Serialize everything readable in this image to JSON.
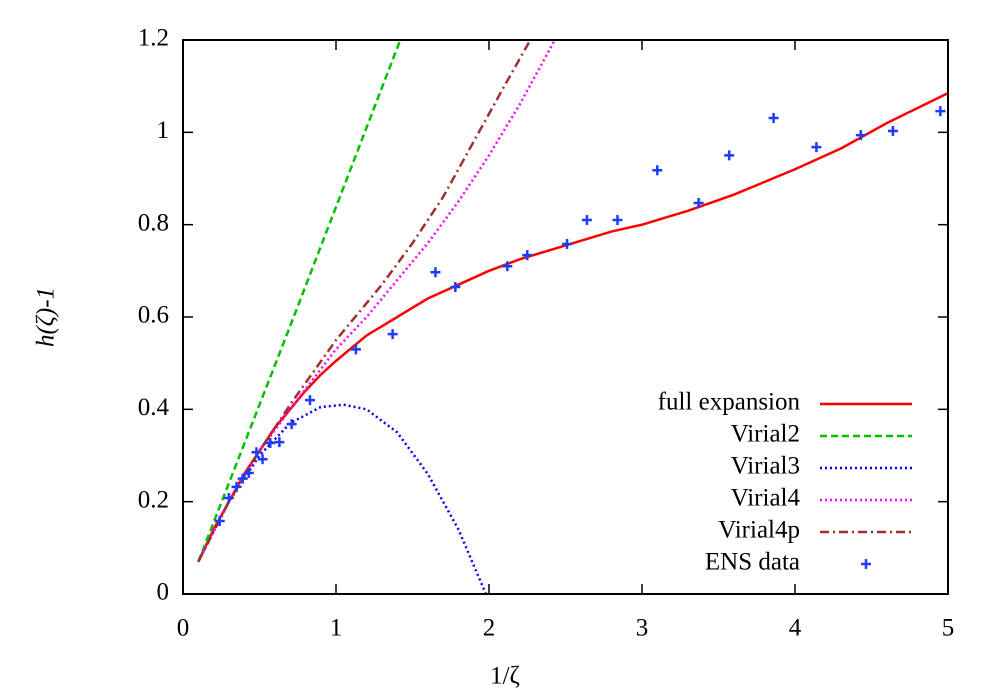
{
  "chart_data": {
    "type": "line",
    "xlabel": "1/ζ",
    "ylabel": "h(ζ)-1",
    "xlim": [
      0,
      5
    ],
    "ylim": [
      0,
      1.2
    ],
    "xticks": [
      0,
      1,
      2,
      3,
      4,
      5
    ],
    "yticks": [
      0,
      0.2,
      0.4,
      0.6,
      0.8,
      1,
      1.2
    ],
    "legend": "bottom-right",
    "series": [
      {
        "name": "full expansion",
        "color": "#ff0000",
        "line_style": "solid",
        "x": [
          0.1,
          0.2,
          0.3,
          0.4,
          0.5,
          0.6,
          0.7,
          0.8,
          0.9,
          1.0,
          1.2,
          1.4,
          1.6,
          1.8,
          2.0,
          2.2,
          2.5,
          2.8,
          3.0,
          3.3,
          3.6,
          4.0,
          4.3,
          4.6,
          5.0
        ],
        "values": [
          0.07,
          0.14,
          0.2,
          0.26,
          0.31,
          0.36,
          0.4,
          0.44,
          0.475,
          0.505,
          0.56,
          0.6,
          0.64,
          0.67,
          0.7,
          0.725,
          0.755,
          0.785,
          0.8,
          0.83,
          0.865,
          0.92,
          0.965,
          1.02,
          1.085
        ]
      },
      {
        "name": "Virial2",
        "color": "#00c000",
        "line_style": "dashed",
        "x": [
          0.1,
          0.7,
          1.42
        ],
        "values": [
          0.07,
          0.58,
          1.2
        ]
      },
      {
        "name": "Virial3",
        "color": "#0000ff",
        "line_style": "dotted",
        "x": [
          0.1,
          0.3,
          0.5,
          0.7,
          0.9,
          1.05,
          1.2,
          1.4,
          1.6,
          1.8,
          1.98
        ],
        "values": [
          0.07,
          0.2,
          0.3,
          0.37,
          0.405,
          0.41,
          0.4,
          0.35,
          0.26,
          0.14,
          0
        ]
      },
      {
        "name": "Virial4",
        "color": "#ff00ff",
        "line_style": "dotted",
        "x": [
          0.1,
          0.3,
          0.5,
          0.7,
          1.0,
          1.2,
          1.4,
          1.6,
          1.8,
          2.0,
          2.2,
          2.43
        ],
        "values": [
          0.07,
          0.2,
          0.31,
          0.4,
          0.53,
          0.6,
          0.68,
          0.76,
          0.85,
          0.95,
          1.06,
          1.2
        ]
      },
      {
        "name": "Virial4p",
        "color": "#a0302f",
        "line_style": "dashdot",
        "x": [
          0.1,
          0.3,
          0.5,
          0.7,
          1.0,
          1.3,
          1.5,
          1.7,
          1.9,
          2.1,
          2.27
        ],
        "values": [
          0.07,
          0.2,
          0.31,
          0.41,
          0.55,
          0.67,
          0.76,
          0.86,
          0.98,
          1.1,
          1.2
        ]
      },
      {
        "name": "ENS data",
        "color": "#1e3cff",
        "line_style": "points",
        "x": [
          0.24,
          0.3,
          0.35,
          0.39,
          0.43,
          0.48,
          0.52,
          0.57,
          0.63,
          0.71,
          0.83,
          1.13,
          1.37,
          1.65,
          1.78,
          2.12,
          2.25,
          2.51,
          2.64,
          2.84,
          3.1,
          3.37,
          3.57,
          3.86,
          4.14,
          4.43,
          4.64,
          4.95
        ],
        "values": [
          0.158,
          0.208,
          0.232,
          0.25,
          0.262,
          0.307,
          0.292,
          0.327,
          0.329,
          0.368,
          0.42,
          0.53,
          0.563,
          0.697,
          0.665,
          0.71,
          0.734,
          0.758,
          0.81,
          0.81,
          0.918,
          0.847,
          0.95,
          1.031,
          0.968,
          0.994,
          1.003,
          1.046
        ]
      }
    ]
  }
}
